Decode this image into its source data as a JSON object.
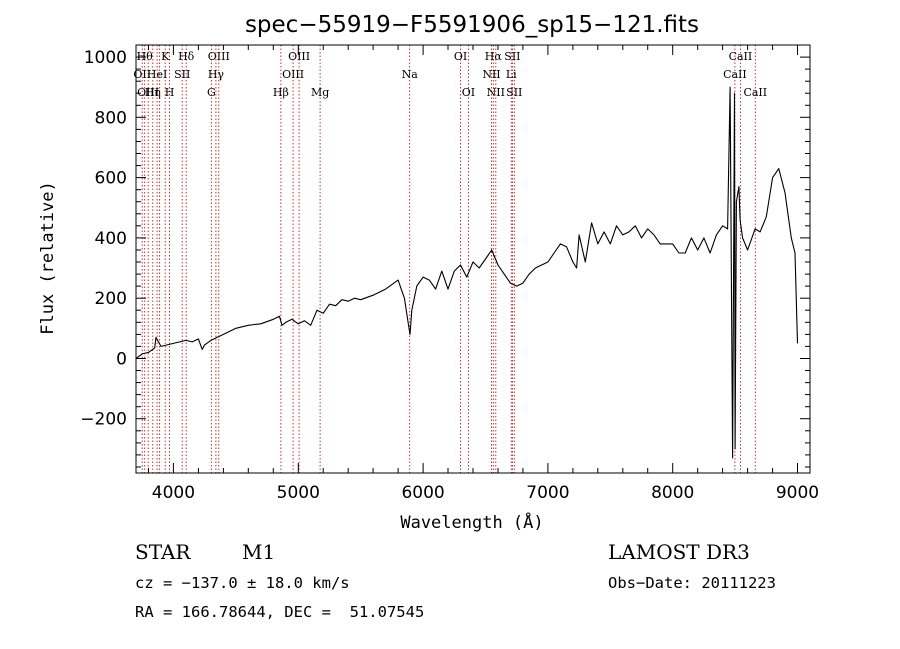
{
  "chart_data": {
    "type": "line",
    "title": "spec−55919−F5591906_sp15−121.fits",
    "xlabel": "Wavelength (Å)",
    "ylabel": "Flux (relative)",
    "xlim": [
      3700,
      9100
    ],
    "ylim": [
      -380,
      1040
    ],
    "xticks": [
      4000,
      5000,
      6000,
      7000,
      8000,
      9000
    ],
    "yticks": [
      -200,
      0,
      200,
      400,
      600,
      800,
      1000
    ],
    "ytick_labels": [
      "−200",
      "0",
      "200",
      "400",
      "600",
      "800",
      "1000"
    ],
    "series": [
      {
        "name": "spectrum",
        "color": "#000000",
        "x": [
          3700,
          3750,
          3800,
          3850,
          3860,
          3900,
          3950,
          4000,
          4050,
          4100,
          4150,
          4200,
          4230,
          4250,
          4300,
          4350,
          4400,
          4500,
          4600,
          4700,
          4800,
          4850,
          4870,
          4900,
          4950,
          5000,
          5050,
          5100,
          5150,
          5200,
          5250,
          5300,
          5350,
          5400,
          5450,
          5500,
          5600,
          5700,
          5800,
          5850,
          5880,
          5895,
          5910,
          5950,
          6000,
          6050,
          6100,
          6150,
          6200,
          6250,
          6300,
          6350,
          6400,
          6450,
          6500,
          6550,
          6600,
          6650,
          6700,
          6750,
          6800,
          6850,
          6900,
          6950,
          7000,
          7050,
          7100,
          7150,
          7200,
          7230,
          7250,
          7300,
          7350,
          7400,
          7450,
          7500,
          7550,
          7600,
          7650,
          7700,
          7750,
          7800,
          7850,
          7900,
          7950,
          8000,
          8050,
          8100,
          8150,
          8200,
          8250,
          8300,
          8350,
          8400,
          8440,
          8460,
          8480,
          8495,
          8500,
          8510,
          8530,
          8540,
          8560,
          8600,
          8660,
          8700,
          8750,
          8800,
          8850,
          8900,
          8950,
          8980,
          9000
        ],
        "y": [
          0,
          15,
          20,
          35,
          70,
          40,
          45,
          50,
          55,
          60,
          55,
          65,
          30,
          45,
          60,
          70,
          80,
          100,
          110,
          115,
          130,
          140,
          110,
          120,
          130,
          115,
          125,
          110,
          160,
          150,
          180,
          175,
          195,
          190,
          200,
          195,
          210,
          230,
          260,
          200,
          120,
          80,
          160,
          240,
          270,
          260,
          230,
          290,
          230,
          290,
          310,
          270,
          320,
          300,
          330,
          360,
          310,
          280,
          250,
          240,
          250,
          280,
          300,
          310,
          320,
          350,
          380,
          370,
          320,
          300,
          410,
          320,
          450,
          380,
          420,
          380,
          440,
          410,
          420,
          440,
          400,
          430,
          410,
          380,
          380,
          380,
          350,
          350,
          400,
          360,
          400,
          350,
          410,
          440,
          430,
          900,
          -330,
          880,
          -300,
          520,
          570,
          460,
          400,
          360,
          430,
          420,
          470,
          600,
          630,
          550,
          400,
          350,
          50
        ]
      }
    ],
    "line_markers": [
      {
        "w": 3750,
        "label": "OII",
        "row": 1
      },
      {
        "w": 3770,
        "label": "Hθ",
        "row": 0
      },
      {
        "w": 3798,
        "label": "OIII",
        "row": 2
      },
      {
        "w": 3835,
        "label": "Hη",
        "row": 2
      },
      {
        "w": 3869,
        "label": "HeI",
        "row": 1
      },
      {
        "w": 3889,
        "label": "",
        "row": 0
      },
      {
        "w": 3934,
        "label": "K",
        "row": 0
      },
      {
        "w": 3968,
        "label": "H",
        "row": 2
      },
      {
        "w": 4070,
        "label": "SII",
        "row": 1
      },
      {
        "w": 4102,
        "label": "Hδ",
        "row": 0
      },
      {
        "w": 4304,
        "label": "G",
        "row": 2
      },
      {
        "w": 4340,
        "label": "Hγ",
        "row": 1
      },
      {
        "w": 4363,
        "label": "OIII",
        "row": 0
      },
      {
        "w": 4861,
        "label": "Hβ",
        "row": 2
      },
      {
        "w": 4959,
        "label": "OIII",
        "row": 1
      },
      {
        "w": 5007,
        "label": "OIII",
        "row": 0
      },
      {
        "w": 5175,
        "label": "Mg",
        "row": 2
      },
      {
        "w": 5893,
        "label": "Na",
        "row": 1
      },
      {
        "w": 6300,
        "label": "OI",
        "row": 0
      },
      {
        "w": 6363,
        "label": "OI",
        "row": 2
      },
      {
        "w": 6548,
        "label": "NII",
        "row": 1
      },
      {
        "w": 6563,
        "label": "Hα",
        "row": 0
      },
      {
        "w": 6583,
        "label": "NII",
        "row": 2
      },
      {
        "w": 6707,
        "label": "Li",
        "row": 1
      },
      {
        "w": 6716,
        "label": "SII",
        "row": 0
      },
      {
        "w": 6731,
        "label": "SII",
        "row": 2
      },
      {
        "w": 8498,
        "label": "CaII",
        "row": 1
      },
      {
        "w": 8542,
        "label": "CaII",
        "row": 0
      },
      {
        "w": 8662,
        "label": "CaII",
        "row": 2
      }
    ],
    "marker_color": "#b22222"
  },
  "footer": {
    "object_type": "STAR",
    "subclass": "M1",
    "survey": "LAMOST DR3",
    "cz": "cz = −137.0 ± 18.0 km/s",
    "obs_date": "Obs−Date: 20111223",
    "coords": "RA = 166.78644, DEC =  51.07545"
  }
}
